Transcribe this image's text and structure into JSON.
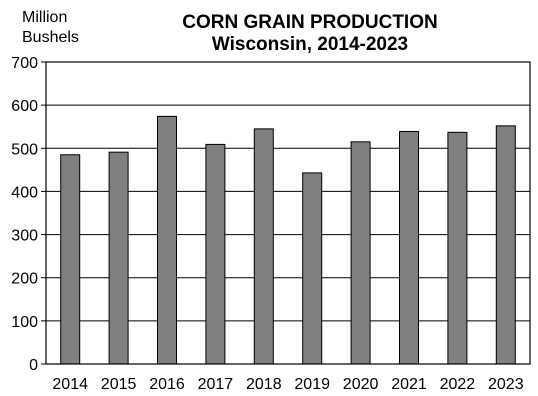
{
  "chart_data": {
    "type": "bar",
    "title": "CORN GRAIN PRODUCTION",
    "subtitle": "Wisconsin, 2014-2023",
    "ylabel_line1": "Million",
    "ylabel_line2": "Bushels",
    "xlabel": "",
    "ylim": [
      0,
      700
    ],
    "yticks": [
      0,
      100,
      200,
      300,
      400,
      500,
      600,
      700
    ],
    "grid": true,
    "categories": [
      "2014",
      "2015",
      "2016",
      "2017",
      "2018",
      "2019",
      "2020",
      "2021",
      "2022",
      "2023"
    ],
    "values": [
      485,
      491,
      574,
      509,
      545,
      443,
      515,
      539,
      537,
      552
    ],
    "bar_color": "#7f7f7f"
  }
}
